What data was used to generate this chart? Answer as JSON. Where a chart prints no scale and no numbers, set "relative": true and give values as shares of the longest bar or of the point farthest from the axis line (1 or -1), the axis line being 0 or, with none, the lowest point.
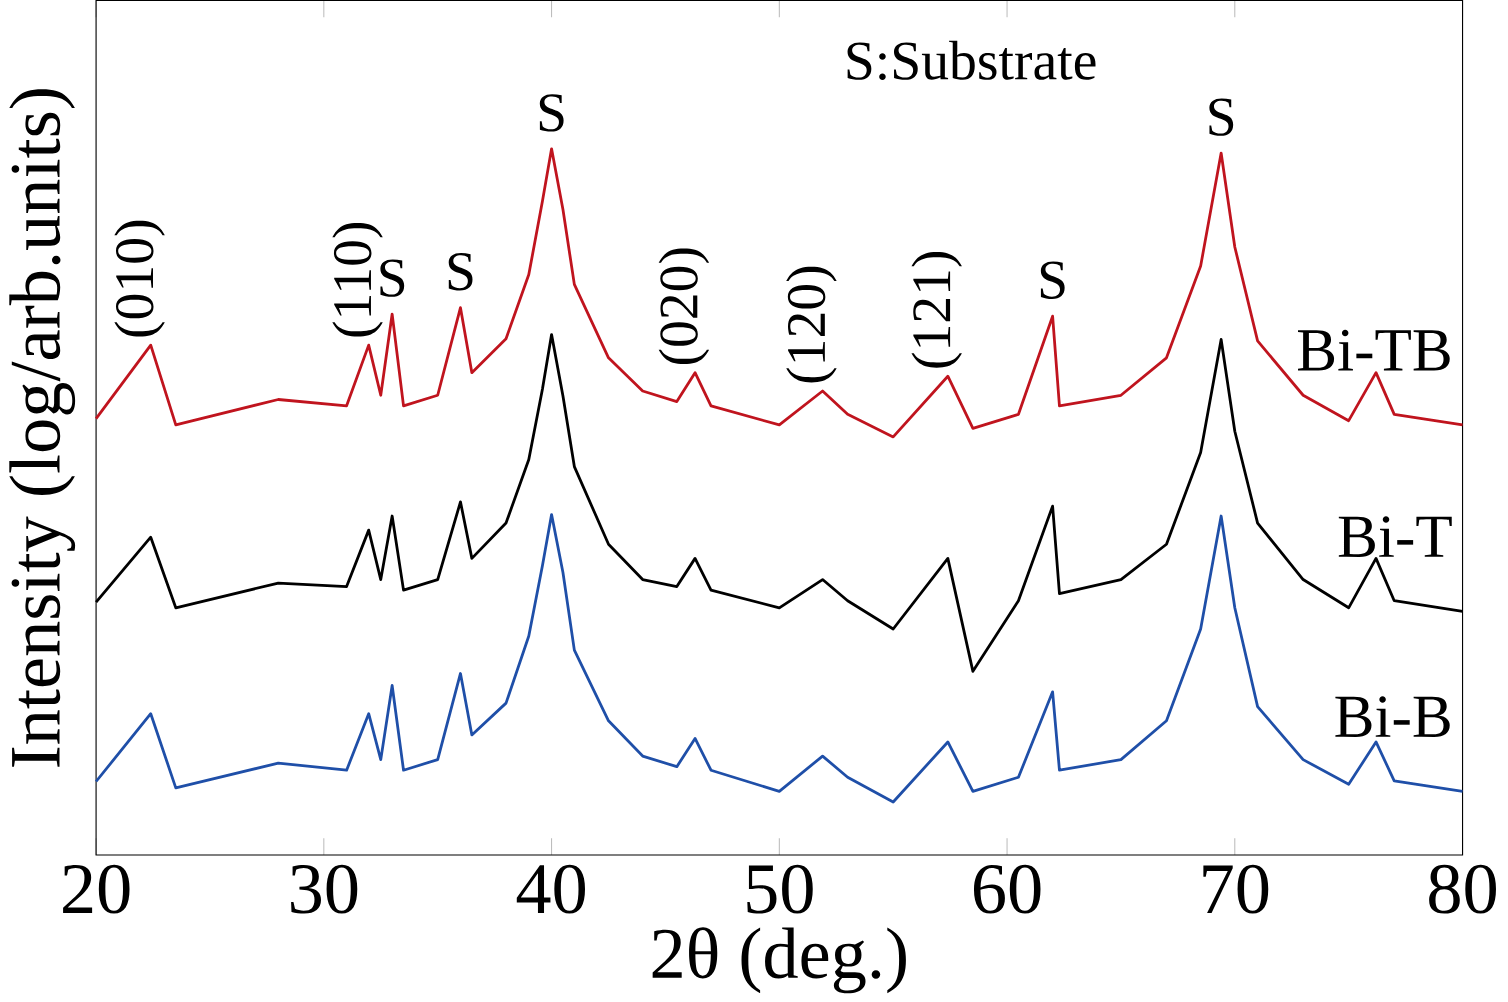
{
  "chart_data": {
    "type": "line",
    "relative": true,
    "xlabel": "2θ (deg.)",
    "ylabel": "Intensity (log/arb.units)",
    "xlim": [
      20,
      80
    ],
    "xticks": [
      20,
      30,
      40,
      50,
      60,
      70,
      80
    ],
    "x": [
      20,
      22.4,
      23.5,
      28,
      31,
      31.97,
      32.5,
      33.0,
      33.5,
      35,
      36.0,
      36.5,
      38,
      39,
      39.6,
      40.0,
      40.5,
      41,
      42.5,
      44,
      45.5,
      46.3,
      47,
      50,
      51.9,
      53,
      55,
      57.4,
      58.5,
      60.5,
      62.0,
      62.3,
      65,
      67,
      68.5,
      69.4,
      70,
      71,
      73,
      75,
      76.2,
      77,
      80
    ],
    "series": [
      {
        "name": "Bi-TB",
        "color": "#c0141e",
        "values": [
          0.618,
          0.722,
          0.609,
          0.645,
          0.636,
          0.722,
          0.651,
          0.766,
          0.636,
          0.651,
          0.775,
          0.683,
          0.731,
          0.822,
          0.926,
          1.0,
          0.914,
          0.808,
          0.704,
          0.657,
          0.642,
          0.683,
          0.636,
          0.609,
          0.657,
          0.624,
          0.592,
          0.678,
          0.604,
          0.624,
          0.763,
          0.636,
          0.651,
          0.704,
          0.834,
          0.994,
          0.861,
          0.728,
          0.651,
          0.615,
          0.683,
          0.624,
          0.609
        ]
      },
      {
        "name": "Bi-T",
        "color": "#000000",
        "values": [
          0.358,
          0.45,
          0.35,
          0.385,
          0.38,
          0.46,
          0.39,
          0.48,
          0.375,
          0.39,
          0.5,
          0.42,
          0.47,
          0.56,
          0.66,
          0.737,
          0.65,
          0.55,
          0.44,
          0.39,
          0.38,
          0.42,
          0.375,
          0.35,
          0.39,
          0.36,
          0.32,
          0.42,
          0.26,
          0.36,
          0.494,
          0.37,
          0.39,
          0.44,
          0.57,
          0.73,
          0.6,
          0.47,
          0.39,
          0.35,
          0.42,
          0.36,
          0.345
        ]
      },
      {
        "name": "Bi-B",
        "color": "#1f4fa8",
        "values": [
          0.104,
          0.2,
          0.095,
          0.13,
          0.12,
          0.2,
          0.135,
          0.24,
          0.12,
          0.135,
          0.257,
          0.17,
          0.215,
          0.31,
          0.41,
          0.482,
          0.4,
          0.29,
          0.19,
          0.14,
          0.125,
          0.165,
          0.12,
          0.09,
          0.14,
          0.11,
          0.075,
          0.16,
          0.09,
          0.11,
          0.231,
          0.12,
          0.135,
          0.19,
          0.32,
          0.48,
          0.35,
          0.21,
          0.135,
          0.1,
          0.16,
          0.105,
          0.09
        ]
      }
    ],
    "annotations": [
      "S:Substrate",
      {
        "text": "(010)",
        "x": 22.4,
        "y": 0.722
      },
      {
        "text": "(110)",
        "x": 31.97,
        "y": 0.722
      },
      {
        "text": "S",
        "x": 33.0,
        "y": 0.766
      },
      {
        "text": "S",
        "x": 36.0,
        "y": 0.775
      },
      {
        "text": "S",
        "x": 40.0,
        "y": 1.0
      },
      {
        "text": "(020)",
        "x": 46.3,
        "y": 0.683
      },
      {
        "text": "(120)",
        "x": 51.9,
        "y": 0.657
      },
      {
        "text": "(121)",
        "x": 57.4,
        "y": 0.678
      },
      {
        "text": "S",
        "x": 62.0,
        "y": 0.763
      },
      {
        "text": "S",
        "x": 69.4,
        "y": 0.994
      }
    ]
  }
}
